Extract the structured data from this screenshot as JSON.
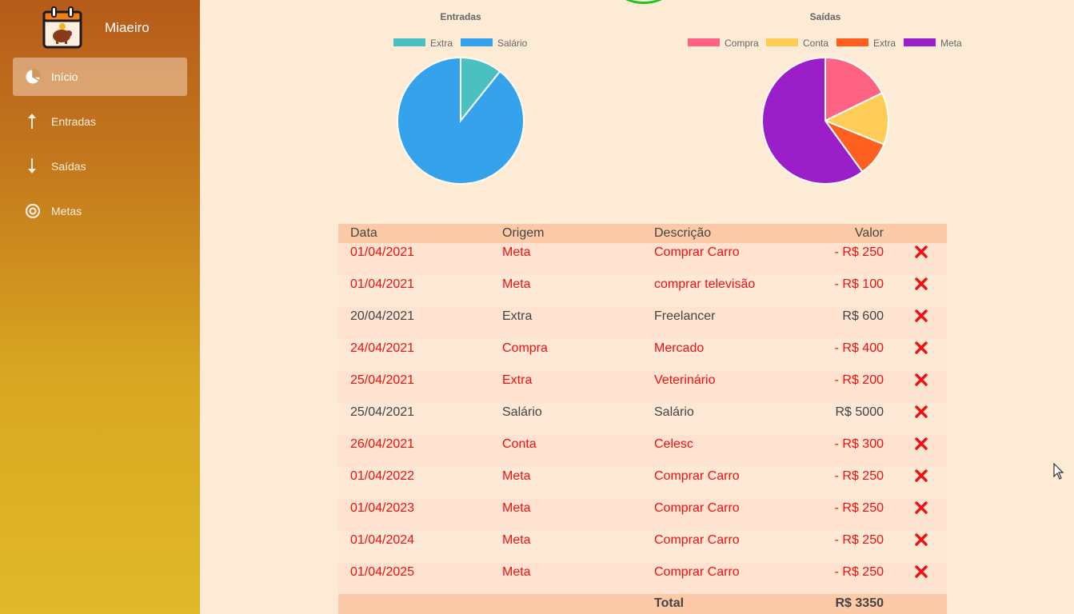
{
  "app": {
    "name": "Miaeiro"
  },
  "sidebar": {
    "items": [
      {
        "label": "Início",
        "icon": "pie-chart-icon",
        "active": true
      },
      {
        "label": "Entradas",
        "icon": "arrow-up-icon"
      },
      {
        "label": "Saídas",
        "icon": "arrow-down-icon"
      },
      {
        "label": "Metas",
        "icon": "target-icon"
      }
    ]
  },
  "charts": {
    "entradas": {
      "title": "Entradas",
      "legend": [
        {
          "label": "Extra",
          "color": "#4bc0c0"
        },
        {
          "label": "Salário",
          "color": "#36a2eb"
        }
      ]
    },
    "saidas": {
      "title": "Saídas",
      "legend": [
        {
          "label": "Compra",
          "color": "#ff6384"
        },
        {
          "label": "Conta",
          "color": "#ffcd56"
        },
        {
          "label": "Extra",
          "color": "#ff5f1f"
        },
        {
          "label": "Meta",
          "color": "#9b1fc8"
        }
      ]
    }
  },
  "chart_data": [
    {
      "type": "pie",
      "title": "Entradas",
      "categories": [
        "Extra",
        "Salário"
      ],
      "values": [
        600,
        5000
      ],
      "colors": [
        "#4bc0c0",
        "#36a2eb"
      ]
    },
    {
      "type": "pie",
      "title": "Saídas",
      "categories": [
        "Compra",
        "Conta",
        "Extra",
        "Meta"
      ],
      "values": [
        400,
        300,
        200,
        1350
      ],
      "colors": [
        "#ff6384",
        "#ffcd56",
        "#ff5f1f",
        "#9b1fc8"
      ]
    }
  ],
  "table": {
    "headers": {
      "date": "Data",
      "origin": "Origem",
      "description": "Descrição",
      "value": "Valor"
    },
    "rows": [
      {
        "date": "01/04/2021",
        "origin": "Meta",
        "description": "Comprar Carro",
        "value": "- R$ 250",
        "negative": true
      },
      {
        "date": "01/04/2021",
        "origin": "Meta",
        "description": "comprar televisão",
        "value": "- R$ 100",
        "negative": true
      },
      {
        "date": "20/04/2021",
        "origin": "Extra",
        "description": "Freelancer",
        "value": "R$ 600",
        "negative": false
      },
      {
        "date": "24/04/2021",
        "origin": "Compra",
        "description": "Mercado",
        "value": "- R$ 400",
        "negative": true
      },
      {
        "date": "25/04/2021",
        "origin": "Extra",
        "description": "Veterinário",
        "value": "- R$ 200",
        "negative": true
      },
      {
        "date": "25/04/2021",
        "origin": "Salário",
        "description": "Salário",
        "value": "R$ 5000",
        "negative": false
      },
      {
        "date": "26/04/2021",
        "origin": "Conta",
        "description": "Celesc",
        "value": "- R$ 300",
        "negative": true
      },
      {
        "date": "01/04/2022",
        "origin": "Meta",
        "description": "Comprar Carro",
        "value": "- R$ 250",
        "negative": true
      },
      {
        "date": "01/04/2023",
        "origin": "Meta",
        "description": "Comprar Carro",
        "value": "- R$ 250",
        "negative": true
      },
      {
        "date": "01/04/2024",
        "origin": "Meta",
        "description": "Comprar Carro",
        "value": "- R$ 250",
        "negative": true
      },
      {
        "date": "01/04/2025",
        "origin": "Meta",
        "description": "Comprar Carro",
        "value": "- R$ 250",
        "negative": true
      }
    ],
    "delete_icon": "close-icon",
    "total_label": "Total",
    "total_value": "R$ 3350"
  },
  "colors": {
    "negative": "#ee1111",
    "positive": "#444444",
    "header_bg": "#fccaa6",
    "page_bg": "#fdebd6"
  }
}
